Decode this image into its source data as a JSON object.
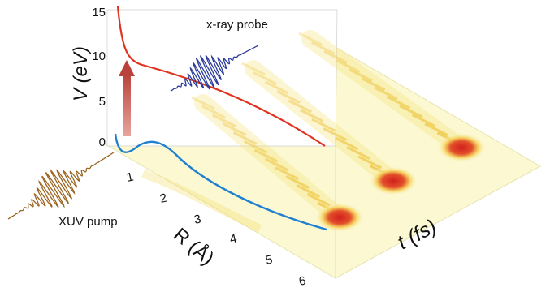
{
  "labels": {
    "v_axis": "V (eV)",
    "r_axis": "R (Å)",
    "t_axis": "t (fs)",
    "pump": "XUV pump",
    "probe": "x-ray probe"
  },
  "v_ticks": [
    "0",
    "5",
    "10",
    "15"
  ],
  "r_ticks": [
    "1",
    "2",
    "3",
    "4",
    "5",
    "6"
  ],
  "colors": {
    "upper_curve": "#e0321e",
    "lower_curve": "#1f7fd0",
    "pump_wave": "#9a6420",
    "probe_wave": "#2b3c9c",
    "arrow": "#c0504d",
    "floor": "#fbf8d2",
    "hot_spot": "#d11f1f"
  }
}
